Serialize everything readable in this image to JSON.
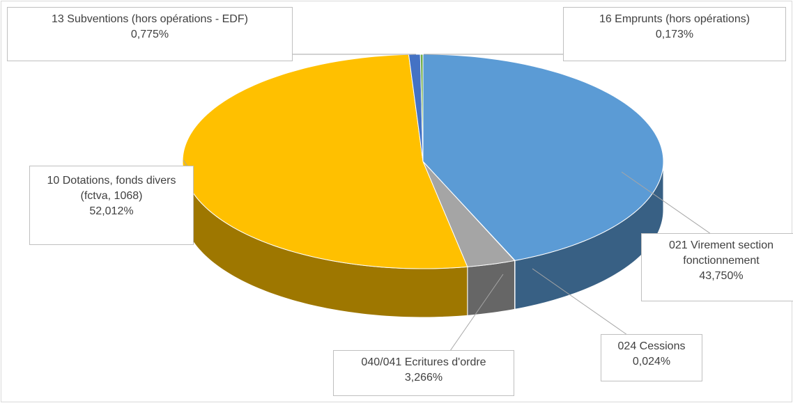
{
  "chart_data": {
    "type": "pie",
    "categories": [
      "021 Virement section fonctionnement",
      "024 Cessions",
      "040/041 Ecritures d'ordre",
      "10 Dotations, fonds divers (fctva, 1068)",
      "13 Subventions (hors opérations - EDF)",
      "16 Emprunts (hors opérations)"
    ],
    "values": [
      43.75,
      0.024,
      3.266,
      52.012,
      0.775,
      0.173
    ],
    "value_labels": [
      "43,750%",
      "0,024%",
      "3,266%",
      "52,012%",
      "0,775%",
      "0,173%"
    ],
    "colors": [
      "#5b9bd5",
      "#ed7d31",
      "#a5a5a5",
      "#ffc000",
      "#4472c4",
      "#70ad47"
    ]
  }
}
